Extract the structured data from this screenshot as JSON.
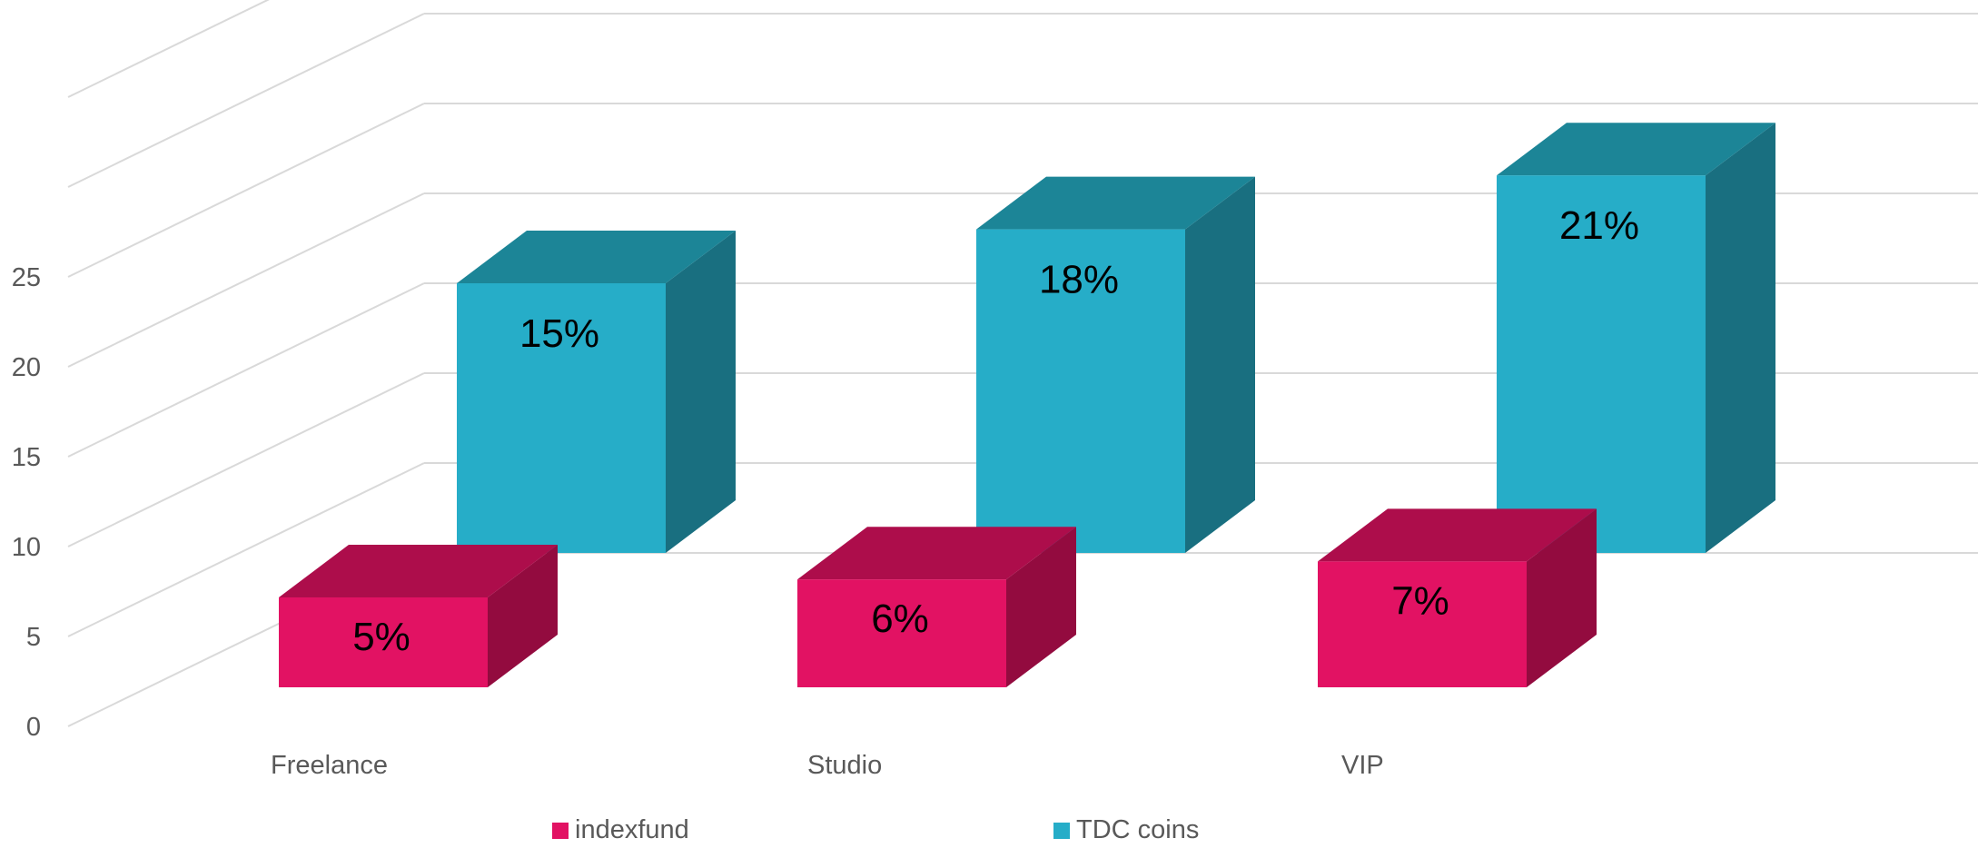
{
  "chart_data": {
    "type": "bar",
    "subtype": "3d-clustered-column",
    "title": "",
    "xlabel": "",
    "ylabel": "",
    "categories": [
      "Freelance",
      "Studio",
      "VIP"
    ],
    "ylim": [
      0,
      25
    ],
    "yticks": [
      "0",
      "5",
      "10",
      "15",
      "20",
      "25"
    ],
    "grid": true,
    "legend_position": "bottom",
    "series": [
      {
        "name": "indexfund",
        "values": [
          5,
          6,
          7
        ],
        "labels": [
          "5%",
          "6%",
          "7%"
        ],
        "color": "#E21263",
        "top_color": "#AD0D4B",
        "side_color": "#930B3F"
      },
      {
        "name": "TDC coins",
        "values": [
          15,
          18,
          21
        ],
        "labels": [
          "15%",
          "18%",
          "21%"
        ],
        "color": "#26ADC8",
        "top_color": "#1C8597",
        "side_color": "#196F80"
      }
    ]
  }
}
